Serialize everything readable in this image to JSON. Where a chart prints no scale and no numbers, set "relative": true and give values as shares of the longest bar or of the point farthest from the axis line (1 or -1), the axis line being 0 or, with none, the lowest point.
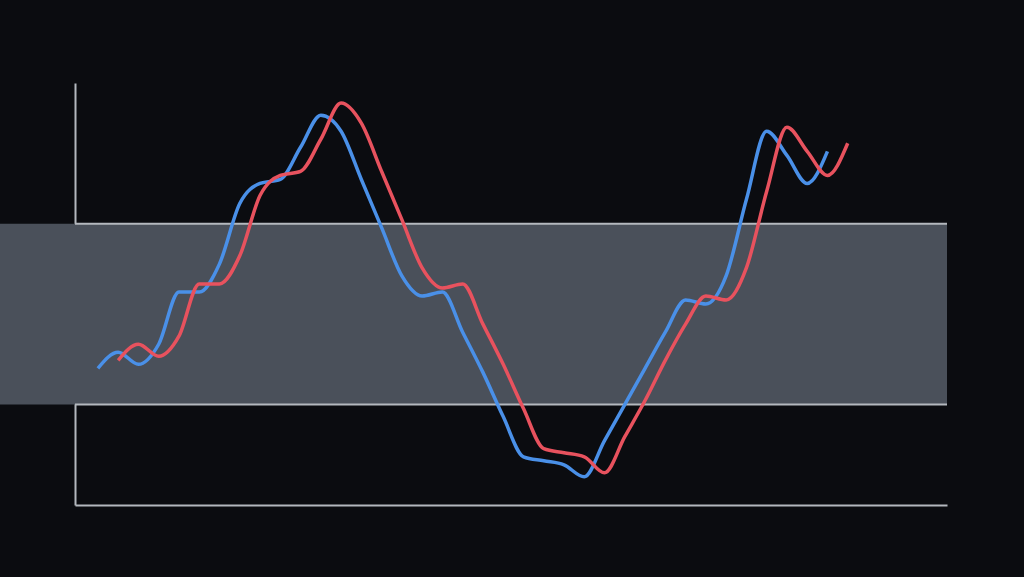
{
  "chart_data": {
    "type": "line",
    "relative": true,
    "grid": false,
    "marker": "none",
    "line_style": "solid",
    "categories": [
      null,
      null,
      null,
      null,
      null,
      null,
      null,
      null,
      null,
      null,
      null,
      null,
      null,
      null,
      null,
      null,
      null,
      null,
      null,
      null,
      null,
      null,
      null,
      null,
      null,
      null,
      null,
      null,
      null,
      null,
      null,
      null,
      null,
      null,
      null,
      null,
      null,
      null
    ],
    "series": [
      {
        "color": "#4a90e8",
        "values": [
          0.34,
          0.38,
          0.35,
          0.4,
          0.53,
          0.53,
          0.6,
          0.75,
          0.8,
          0.81,
          0.89,
          0.97,
          0.93,
          0.81,
          0.69,
          0.57,
          0.52,
          0.53,
          0.43,
          0.33,
          0.22,
          0.12,
          0.11,
          0.1,
          0.07,
          0.16,
          0.25,
          0.34,
          0.43,
          0.51,
          0.5,
          0.57,
          0.76,
          0.93,
          0.87,
          0.8,
          0.88,
          null
        ]
      },
      {
        "color": "#e8525e",
        "values": [
          null,
          0.36,
          0.4,
          0.37,
          0.42,
          0.55,
          0.55,
          0.62,
          0.77,
          0.82,
          0.83,
          0.91,
          1.0,
          0.95,
          0.83,
          0.71,
          0.59,
          0.54,
          0.55,
          0.45,
          0.35,
          0.24,
          0.14,
          0.13,
          0.12,
          0.08,
          0.17,
          0.26,
          0.36,
          0.45,
          0.52,
          0.51,
          0.59,
          0.78,
          0.94,
          0.88,
          0.82,
          0.9
        ]
      }
    ],
    "bands": [
      {
        "axis": "y",
        "from": 0.25,
        "to": 0.7,
        "color": "#4a505a"
      }
    ],
    "ref_lines": [
      {
        "axis": "y",
        "value": 0.25,
        "color": "#b4b8be",
        "line_style": "solid"
      },
      {
        "axis": "y",
        "value": 0.7,
        "color": "#b4b8be",
        "line_style": "solid"
      }
    ]
  }
}
